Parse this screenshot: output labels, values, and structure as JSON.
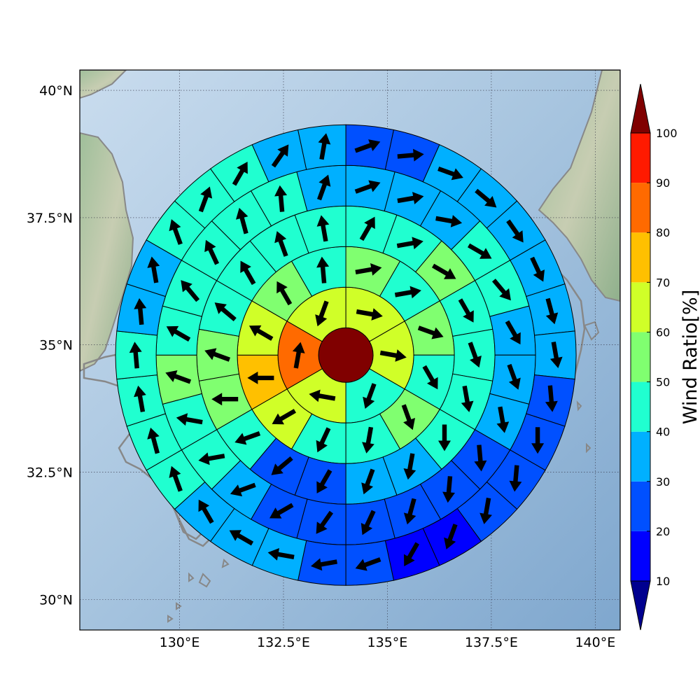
{
  "chart_data": {
    "type": "polar-sector-map",
    "title": "",
    "xlabel": "",
    "ylabel": "",
    "map": {
      "lon_range": [
        127.6,
        140.6
      ],
      "lat_range": [
        29.4,
        40.4
      ],
      "center": {
        "lon": 134.0,
        "lat": 34.8
      },
      "x_ticks": [
        {
          "value": 130.0,
          "label": "130°E"
        },
        {
          "value": 132.5,
          "label": "132.5°E"
        },
        {
          "value": 135.0,
          "label": "135°E"
        },
        {
          "value": 137.5,
          "label": "137.5°E"
        },
        {
          "value": 140.0,
          "label": "140°E"
        }
      ],
      "y_ticks": [
        {
          "value": 30.0,
          "label": "30°N"
        },
        {
          "value": 32.5,
          "label": "32.5°N"
        },
        {
          "value": 35.0,
          "label": "35°N"
        },
        {
          "value": 37.5,
          "label": "37.5°N"
        },
        {
          "value": 40.0,
          "label": "40°N"
        }
      ],
      "grid": true
    },
    "colorbar": {
      "label": "Wind Ratio[%]",
      "ticks": [
        10,
        20,
        30,
        40,
        50,
        60,
        70,
        80,
        90,
        100
      ],
      "bins": [
        {
          "range": [
            0,
            10
          ],
          "color": "#00008f"
        },
        {
          "range": [
            10,
            20
          ],
          "color": "#0000ff"
        },
        {
          "range": [
            20,
            30
          ],
          "color": "#0050ff"
        },
        {
          "range": [
            30,
            40
          ],
          "color": "#00b0ff"
        },
        {
          "range": [
            40,
            50
          ],
          "color": "#20ffd0"
        },
        {
          "range": [
            50,
            60
          ],
          "color": "#80ff70"
        },
        {
          "range": [
            60,
            70
          ],
          "color": "#d0ff28"
        },
        {
          "range": [
            70,
            80
          ],
          "color": "#ffc000"
        },
        {
          "range": [
            80,
            90
          ],
          "color": "#ff6a00"
        },
        {
          "range": [
            90,
            100
          ],
          "color": "#ff1a00"
        },
        {
          "range": [
            100,
            110
          ],
          "color": "#800000"
        }
      ]
    },
    "rings": [
      {
        "ring": 0,
        "sectors": 1,
        "values": [
          100
        ],
        "arrows": []
      },
      {
        "ring": 1,
        "sectors": 6,
        "values": [
          65,
          65,
          45,
          65,
          85,
          65
        ],
        "arrows": [
          100,
          100,
          200,
          280,
          10,
          200
        ]
      },
      {
        "ring": 2,
        "sectors": 12,
        "values": [
          55,
          45,
          55,
          45,
          55,
          45,
          45,
          65,
          75,
          65,
          55,
          45
        ],
        "arrows": [
          80,
          80,
          110,
          150,
          160,
          190,
          205,
          240,
          270,
          300,
          330,
          355
        ]
      },
      {
        "ring": 3,
        "sectors": 18,
        "values": [
          45,
          45,
          55,
          45,
          45,
          45,
          45,
          35,
          35,
          25,
          25,
          45,
          55,
          55,
          45,
          45,
          45,
          45
        ],
        "arrows": [
          30,
          80,
          120,
          150,
          160,
          170,
          180,
          190,
          200,
          210,
          230,
          250,
          270,
          290,
          310,
          330,
          340,
          350
        ]
      },
      {
        "ring": 4,
        "sectors": 24,
        "values": [
          35,
          35,
          35,
          45,
          45,
          35,
          35,
          35,
          25,
          25,
          25,
          25,
          25,
          25,
          35,
          45,
          45,
          55,
          45,
          45,
          45,
          45,
          45,
          35
        ],
        "arrows": [
          70,
          80,
          100,
          120,
          140,
          150,
          160,
          170,
          175,
          185,
          195,
          205,
          215,
          240,
          250,
          260,
          280,
          290,
          300,
          320,
          335,
          345,
          355,
          20
        ]
      },
      {
        "ring": 5,
        "sectors": 30,
        "values": [
          25,
          25,
          35,
          35,
          35,
          35,
          35,
          35,
          25,
          25,
          25,
          25,
          15,
          15,
          25,
          25,
          35,
          35,
          35,
          45,
          45,
          45,
          45,
          35,
          35,
          45,
          45,
          45,
          35,
          35
        ],
        "arrows": [
          70,
          85,
          110,
          130,
          145,
          155,
          165,
          170,
          175,
          180,
          185,
          190,
          200,
          210,
          250,
          260,
          280,
          300,
          330,
          340,
          345,
          350,
          355,
          355,
          350,
          340,
          20,
          30,
          35,
          10
        ]
      }
    ]
  }
}
